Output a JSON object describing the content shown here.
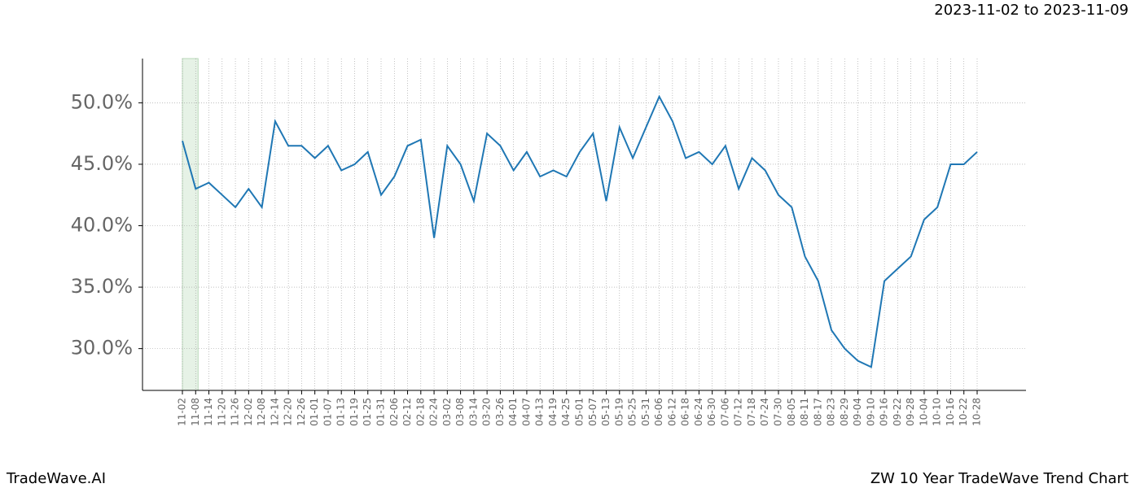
{
  "header": {
    "date_range": "2023-11-02 to 2023-11-09"
  },
  "footer": {
    "brand": "TradeWave.AI",
    "caption": "ZW 10 Year TradeWave Trend Chart"
  },
  "chart_data": {
    "type": "line",
    "categories": [
      "11-02",
      "11-08",
      "11-14",
      "11-20",
      "11-26",
      "12-02",
      "12-08",
      "12-14",
      "12-20",
      "12-26",
      "01-01",
      "01-07",
      "01-13",
      "01-19",
      "01-25",
      "01-31",
      "02-06",
      "02-12",
      "02-18",
      "02-24",
      "03-02",
      "03-08",
      "03-14",
      "03-20",
      "03-26",
      "04-01",
      "04-07",
      "04-13",
      "04-19",
      "04-25",
      "05-01",
      "05-07",
      "05-13",
      "05-19",
      "05-25",
      "05-31",
      "06-06",
      "06-12",
      "06-18",
      "06-24",
      "06-30",
      "07-06",
      "07-12",
      "07-18",
      "07-24",
      "07-30",
      "08-05",
      "08-11",
      "08-17",
      "08-23",
      "08-29",
      "09-04",
      "09-10",
      "09-16",
      "09-22",
      "09-28",
      "10-04",
      "10-10",
      "10-16",
      "10-22",
      "10-28"
    ],
    "values": [
      46.9,
      43.0,
      43.5,
      42.5,
      41.5,
      43.0,
      41.5,
      48.5,
      46.5,
      46.5,
      45.5,
      46.5,
      44.5,
      45.0,
      46.0,
      42.5,
      44.0,
      46.5,
      47.0,
      39.0,
      46.5,
      45.0,
      42.0,
      47.5,
      46.5,
      44.5,
      46.0,
      44.0,
      44.5,
      44.0,
      46.0,
      47.5,
      42.0,
      48.0,
      45.5,
      48.0,
      50.5,
      48.5,
      45.5,
      46.0,
      45.0,
      46.5,
      43.0,
      45.5,
      44.5,
      42.5,
      41.5,
      37.5,
      35.5,
      31.5,
      30.0,
      29.0,
      28.5,
      35.5,
      36.5,
      37.5,
      40.5,
      41.5,
      45.0,
      45.0,
      46.0
    ],
    "color": "#1f77b4",
    "highlight": [
      "11-02",
      "11-08"
    ],
    "highlight_color": "#e6f2e6",
    "ylim": [
      26.6,
      53.6
    ],
    "yticks": [
      {
        "value": 30,
        "label": "30.0%"
      },
      {
        "value": 35,
        "label": "35.0%"
      },
      {
        "value": 40,
        "label": "40.0%"
      },
      {
        "value": 45,
        "label": "45.0%"
      },
      {
        "value": 50,
        "label": "50.0%"
      }
    ],
    "grid": true
  }
}
